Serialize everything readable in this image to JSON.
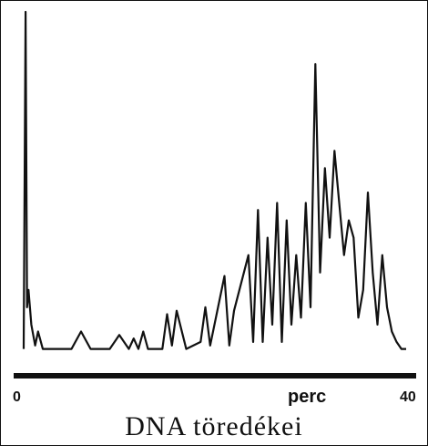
{
  "chart_data": {
    "type": "line",
    "title": "DNA töredékei",
    "xlabel": "perc",
    "ylabel": "",
    "xlim": [
      0,
      40
    ],
    "ylim": [
      0,
      1
    ],
    "xticks": [
      "0",
      "40"
    ],
    "grid": false,
    "legend": "none",
    "line_color": "#111111",
    "axis_color": "#111111",
    "x": [
      0,
      0.2,
      0.35,
      0.5,
      0.8,
      1.2,
      1.5,
      2,
      3,
      4,
      5,
      6,
      7,
      7.5,
      8,
      9,
      10,
      11,
      11.5,
      12,
      12.5,
      13,
      13.5,
      14.5,
      15,
      15.5,
      16,
      17,
      18.5,
      19,
      19.5,
      21,
      21.5,
      22,
      23.5,
      24,
      24.5,
      25,
      25.5,
      26,
      26.5,
      27,
      27.5,
      28,
      28.5,
      29,
      29.5,
      30,
      30.5,
      31,
      31.5,
      32,
      32.5,
      33,
      33.5,
      34,
      34.5,
      35,
      35.5,
      36,
      36.5,
      37,
      37.5,
      38,
      38.5,
      39,
      39.5,
      40
    ],
    "y": [
      0.03,
      1.0,
      0.15,
      0.2,
      0.1,
      0.04,
      0.08,
      0.03,
      0.03,
      0.03,
      0.03,
      0.08,
      0.03,
      0.03,
      0.03,
      0.03,
      0.07,
      0.03,
      0.06,
      0.03,
      0.08,
      0.03,
      0.03,
      0.03,
      0.13,
      0.04,
      0.14,
      0.03,
      0.05,
      0.15,
      0.04,
      0.24,
      0.04,
      0.14,
      0.3,
      0.05,
      0.43,
      0.05,
      0.35,
      0.1,
      0.45,
      0.05,
      0.4,
      0.1,
      0.3,
      0.12,
      0.45,
      0.15,
      0.85,
      0.25,
      0.55,
      0.35,
      0.6,
      0.45,
      0.3,
      0.4,
      0.35,
      0.12,
      0.2,
      0.48,
      0.25,
      0.1,
      0.3,
      0.15,
      0.08,
      0.05,
      0.03,
      0.03
    ]
  }
}
